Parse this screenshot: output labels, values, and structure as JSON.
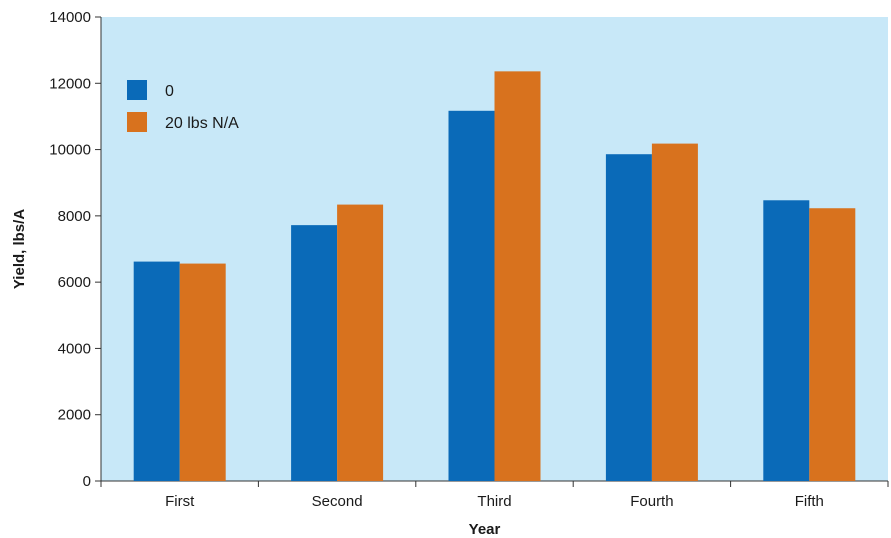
{
  "chart_data": {
    "type": "bar",
    "title": "",
    "xlabel": "Year",
    "ylabel": "Yield, lbs/A",
    "ylim": [
      0,
      14000
    ],
    "yticks": [
      0,
      2000,
      4000,
      6000,
      8000,
      10000,
      12000,
      14000
    ],
    "ytick_labels": [
      "0",
      "2000",
      "4000",
      "6000",
      "8000",
      "10000",
      "12000",
      "14000"
    ],
    "categories": [
      "First",
      "Second",
      "Third",
      "Fourth",
      "Fifth"
    ],
    "series": [
      {
        "name": "0",
        "color": "#0a6ab8",
        "values": [
          6620,
          7720,
          11170,
          9860,
          8470
        ]
      },
      {
        "name": "20 lbs N/A",
        "color": "#d8721e",
        "values": [
          6560,
          8340,
          12360,
          10180,
          8230
        ]
      }
    ],
    "legend_position": "top-left",
    "grid": false,
    "plot_background": "#c8e8f8"
  }
}
